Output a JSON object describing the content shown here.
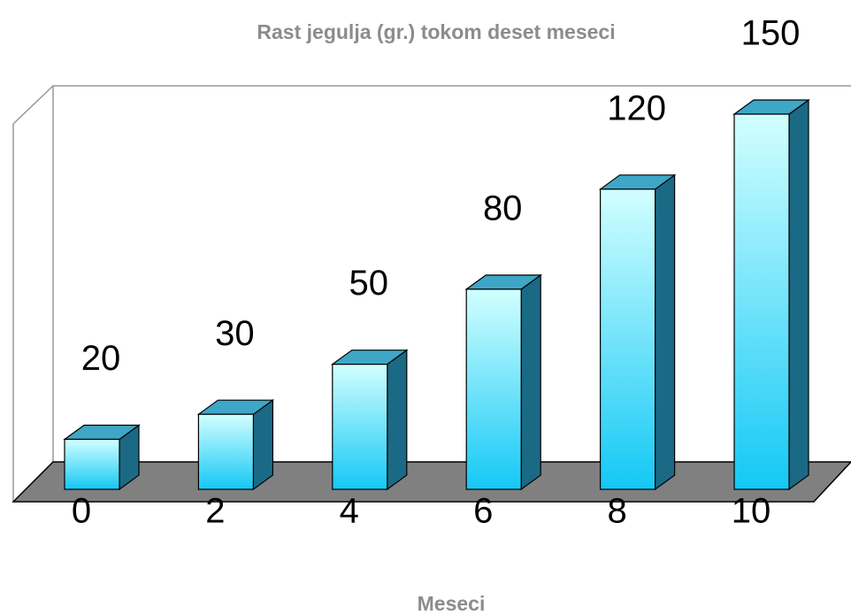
{
  "chart_data": {
    "type": "bar",
    "title": "Rast jegulja (gr.) tokom deset meseci",
    "x_label": "Meseci",
    "categories": [
      "0",
      "2",
      "4",
      "6",
      "8",
      "10"
    ],
    "values": [
      20,
      30,
      50,
      80,
      120,
      150
    ]
  }
}
